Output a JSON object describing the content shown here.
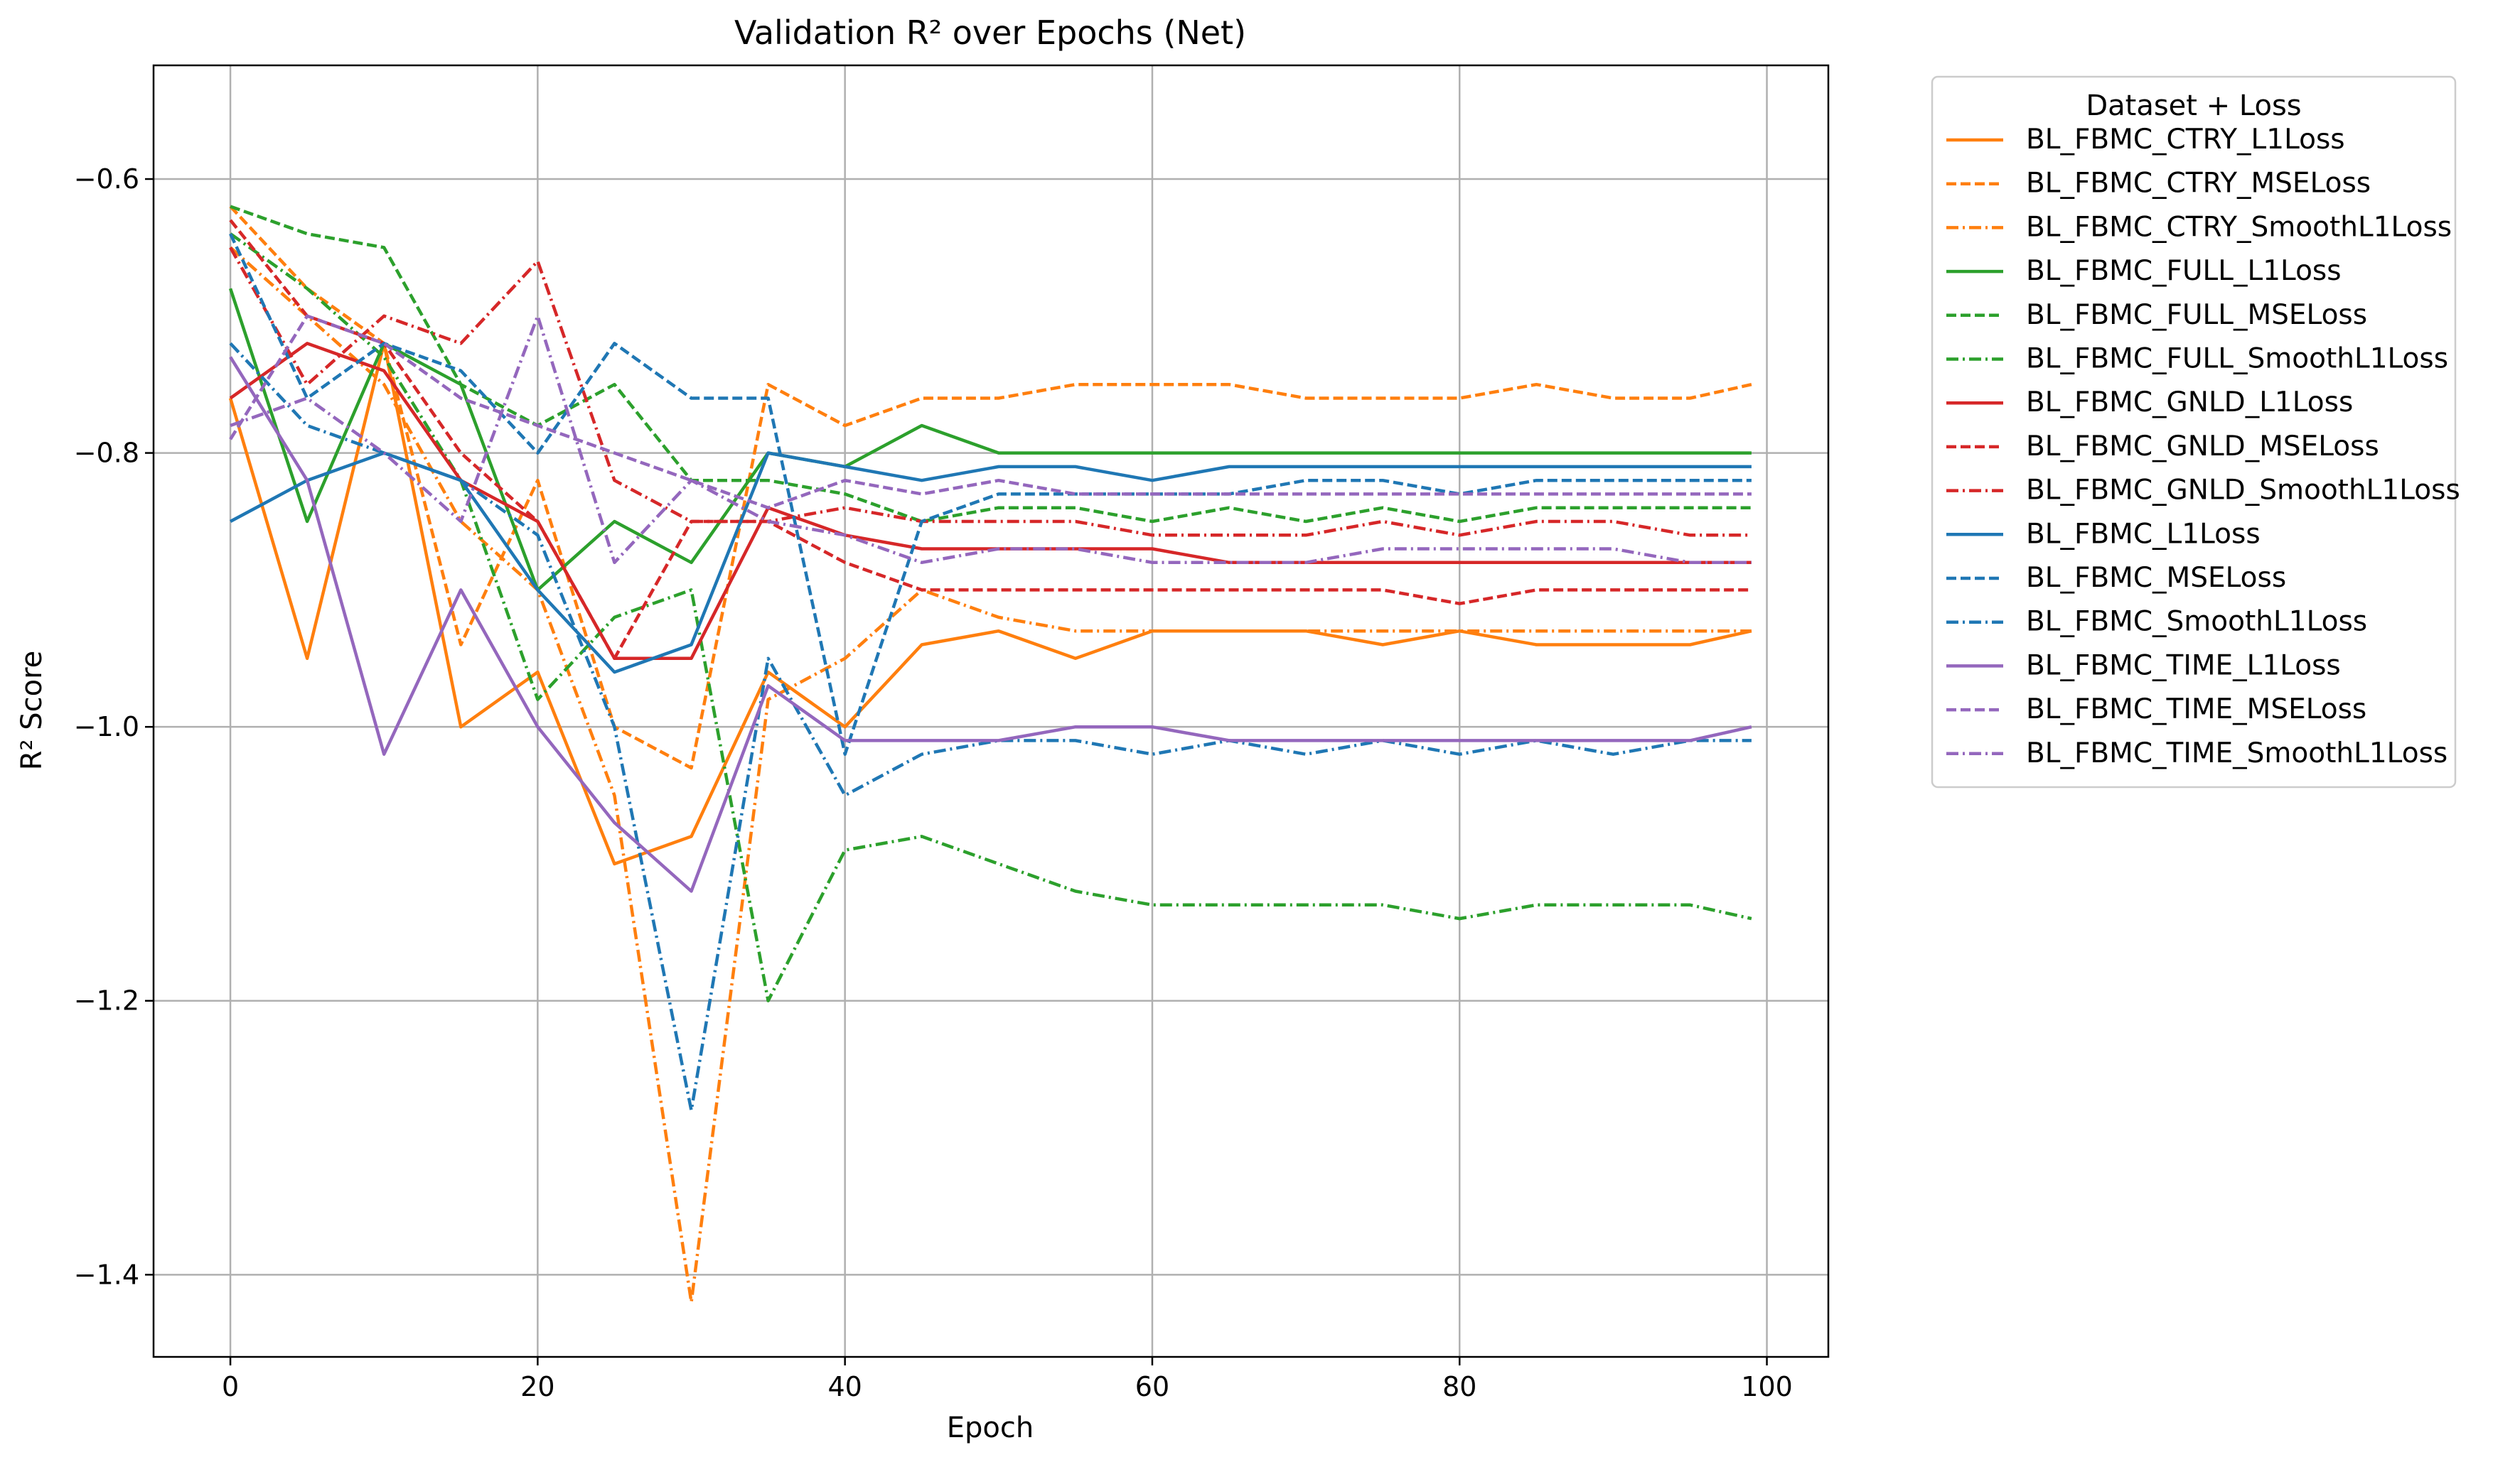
{
  "chart_data": {
    "type": "line",
    "title": "Validation R² over Epochs (Net)",
    "xlabel": "Epoch",
    "ylabel": "R² Score",
    "xlim": [
      -5,
      104
    ],
    "ylim": [
      -1.46,
      -0.517
    ],
    "xticks": [
      0,
      20,
      40,
      60,
      80,
      100
    ],
    "xtick_labels": [
      "0",
      "20",
      "40",
      "60",
      "80",
      "100"
    ],
    "yticks": [
      -1.4,
      -1.2,
      -1.0,
      -0.8,
      -0.6
    ],
    "ytick_labels": [
      "−1.4",
      "−1.2",
      "−1.0",
      "−0.8",
      "−0.6"
    ],
    "grid": true,
    "legend": {
      "title": "Dataset + Loss",
      "placement": "outside-right-top"
    },
    "x": [
      0,
      5,
      10,
      15,
      20,
      25,
      30,
      35,
      40,
      45,
      50,
      55,
      60,
      65,
      70,
      75,
      80,
      85,
      90,
      95,
      99
    ],
    "series": [
      {
        "name": "BL_FBMC_CTRY_L1Loss",
        "color": "#ff7f0e",
        "dash": "solid",
        "values": [
          -0.76,
          -0.95,
          -0.72,
          -1.0,
          -0.96,
          -1.1,
          -1.08,
          -0.96,
          -1.0,
          -0.94,
          -0.93,
          -0.95,
          -0.93,
          -0.93,
          -0.93,
          -0.94,
          -0.93,
          -0.94,
          -0.94,
          -0.94,
          -0.93
        ]
      },
      {
        "name": "BL_FBMC_CTRY_MSELoss",
        "color": "#ff7f0e",
        "dash": "dashed",
        "values": [
          -0.62,
          -0.68,
          -0.72,
          -0.94,
          -0.82,
          -1.0,
          -1.03,
          -0.75,
          -0.78,
          -0.76,
          -0.76,
          -0.75,
          -0.75,
          -0.75,
          -0.76,
          -0.76,
          -0.76,
          -0.75,
          -0.76,
          -0.76,
          -0.75
        ]
      },
      {
        "name": "BL_FBMC_CTRY_SmoothL1Loss",
        "color": "#ff7f0e",
        "dash": "dashdot",
        "values": [
          -0.65,
          -0.7,
          -0.75,
          -0.85,
          -0.9,
          -1.05,
          -1.42,
          -0.98,
          -0.95,
          -0.9,
          -0.92,
          -0.93,
          -0.93,
          -0.93,
          -0.93,
          -0.93,
          -0.93,
          -0.93,
          -0.93,
          -0.93,
          -0.93
        ]
      },
      {
        "name": "BL_FBMC_FULL_L1Loss",
        "color": "#2ca02c",
        "dash": "solid",
        "values": [
          -0.68,
          -0.85,
          -0.72,
          -0.75,
          -0.9,
          -0.85,
          -0.88,
          -0.8,
          -0.81,
          -0.78,
          -0.8,
          -0.8,
          -0.8,
          -0.8,
          -0.8,
          -0.8,
          -0.8,
          -0.8,
          -0.8,
          -0.8,
          -0.8
        ]
      },
      {
        "name": "BL_FBMC_FULL_MSELoss",
        "color": "#2ca02c",
        "dash": "dashed",
        "values": [
          -0.62,
          -0.64,
          -0.65,
          -0.75,
          -0.78,
          -0.75,
          -0.82,
          -0.82,
          -0.83,
          -0.85,
          -0.84,
          -0.84,
          -0.85,
          -0.84,
          -0.85,
          -0.84,
          -0.85,
          -0.84,
          -0.84,
          -0.84,
          -0.84
        ]
      },
      {
        "name": "BL_FBMC_FULL_SmoothL1Loss",
        "color": "#2ca02c",
        "dash": "dashdot",
        "values": [
          -0.64,
          -0.68,
          -0.73,
          -0.82,
          -0.98,
          -0.92,
          -0.9,
          -1.2,
          -1.09,
          -1.08,
          -1.1,
          -1.12,
          -1.13,
          -1.13,
          -1.13,
          -1.13,
          -1.14,
          -1.13,
          -1.13,
          -1.13,
          -1.14
        ]
      },
      {
        "name": "BL_FBMC_GNLD_L1Loss",
        "color": "#d62728",
        "dash": "solid",
        "values": [
          -0.76,
          -0.72,
          -0.74,
          -0.82,
          -0.85,
          -0.95,
          -0.95,
          -0.84,
          -0.86,
          -0.87,
          -0.87,
          -0.87,
          -0.87,
          -0.88,
          -0.88,
          -0.88,
          -0.88,
          -0.88,
          -0.88,
          -0.88,
          -0.88
        ]
      },
      {
        "name": "BL_FBMC_GNLD_MSELoss",
        "color": "#d62728",
        "dash": "dashed",
        "values": [
          -0.63,
          -0.7,
          -0.72,
          -0.8,
          -0.85,
          -0.95,
          -0.85,
          -0.85,
          -0.88,
          -0.9,
          -0.9,
          -0.9,
          -0.9,
          -0.9,
          -0.9,
          -0.9,
          -0.91,
          -0.9,
          -0.9,
          -0.9,
          -0.9
        ]
      },
      {
        "name": "BL_FBMC_GNLD_SmoothL1Loss",
        "color": "#d62728",
        "dash": "dashdot",
        "values": [
          -0.65,
          -0.75,
          -0.7,
          -0.72,
          -0.66,
          -0.82,
          -0.85,
          -0.85,
          -0.84,
          -0.85,
          -0.85,
          -0.85,
          -0.86,
          -0.86,
          -0.86,
          -0.85,
          -0.86,
          -0.85,
          -0.85,
          -0.86,
          -0.86
        ]
      },
      {
        "name": "BL_FBMC_L1Loss",
        "color": "#1f77b4",
        "dash": "solid",
        "values": [
          -0.85,
          -0.82,
          -0.8,
          -0.82,
          -0.9,
          -0.96,
          -0.94,
          -0.8,
          -0.81,
          -0.82,
          -0.81,
          -0.81,
          -0.82,
          -0.81,
          -0.81,
          -0.81,
          -0.81,
          -0.81,
          -0.81,
          -0.81,
          -0.81
        ]
      },
      {
        "name": "BL_FBMC_MSELoss",
        "color": "#1f77b4",
        "dash": "dashed",
        "values": [
          -0.64,
          -0.76,
          -0.72,
          -0.74,
          -0.8,
          -0.72,
          -0.76,
          -0.76,
          -1.02,
          -0.85,
          -0.83,
          -0.83,
          -0.83,
          -0.83,
          -0.82,
          -0.82,
          -0.83,
          -0.82,
          -0.82,
          -0.82,
          -0.82
        ]
      },
      {
        "name": "BL_FBMC_SmoothL1Loss",
        "color": "#1f77b4",
        "dash": "dashdot",
        "values": [
          -0.72,
          -0.78,
          -0.8,
          -0.82,
          -0.86,
          -1.0,
          -1.28,
          -0.95,
          -1.05,
          -1.02,
          -1.01,
          -1.01,
          -1.02,
          -1.01,
          -1.02,
          -1.01,
          -1.02,
          -1.01,
          -1.02,
          -1.01,
          -1.01
        ]
      },
      {
        "name": "BL_FBMC_TIME_L1Loss",
        "color": "#9467bd",
        "dash": "solid",
        "values": [
          -0.73,
          -0.82,
          -1.02,
          -0.9,
          -1.0,
          -1.07,
          -1.12,
          -0.97,
          -1.01,
          -1.01,
          -1.01,
          -1.0,
          -1.0,
          -1.01,
          -1.01,
          -1.01,
          -1.01,
          -1.01,
          -1.01,
          -1.01,
          -1.0
        ]
      },
      {
        "name": "BL_FBMC_TIME_MSELoss",
        "color": "#9467bd",
        "dash": "dashed",
        "values": [
          -0.79,
          -0.7,
          -0.72,
          -0.76,
          -0.78,
          -0.8,
          -0.82,
          -0.84,
          -0.82,
          -0.83,
          -0.82,
          -0.83,
          -0.83,
          -0.83,
          -0.83,
          -0.83,
          -0.83,
          -0.83,
          -0.83,
          -0.83,
          -0.83
        ]
      },
      {
        "name": "BL_FBMC_TIME_SmoothL1Loss",
        "color": "#9467bd",
        "dash": "dashdot",
        "values": [
          -0.78,
          -0.76,
          -0.8,
          -0.85,
          -0.7,
          -0.88,
          -0.82,
          -0.85,
          -0.86,
          -0.88,
          -0.87,
          -0.87,
          -0.88,
          -0.88,
          -0.88,
          -0.87,
          -0.87,
          -0.87,
          -0.87,
          -0.88,
          -0.88
        ]
      }
    ]
  }
}
